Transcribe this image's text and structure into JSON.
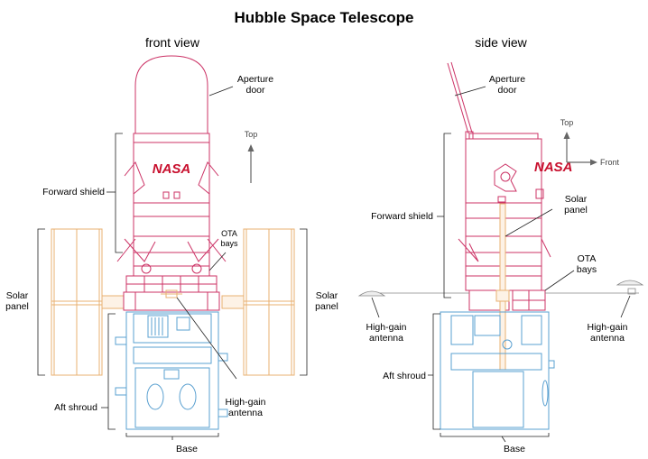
{
  "title": "Hubble Space Telescope",
  "front": {
    "heading": "front view",
    "labels": {
      "aperture_1": "Aperture",
      "aperture_2": "door",
      "forward_shield": "Forward shield",
      "solar_left_1": "Solar",
      "solar_left_2": "panel",
      "solar_right_1": "Solar",
      "solar_right_2": "panel",
      "ota_1": "OTA",
      "ota_2": "bays",
      "aft_shroud": "Aft shroud",
      "hga_1": "High-gain",
      "hga_2": "antenna",
      "base": "Base",
      "top": "Top",
      "logo": "NASA"
    }
  },
  "side": {
    "heading": "side view",
    "labels": {
      "aperture_1": "Aperture",
      "aperture_2": "door",
      "forward_shield": "Forward shield",
      "solar_1": "Solar",
      "solar_2": "panel",
      "ota_1": "OTA",
      "ota_2": "bays",
      "hga_left_1": "High-gain",
      "hga_left_2": "antenna",
      "hga_right_1": "High-gain",
      "hga_right_2": "antenna",
      "aft_shroud": "Aft shroud",
      "base": "Base",
      "top": "Top",
      "front": "Front",
      "logo": "NASA"
    }
  },
  "colors": {
    "telescope": "#cc3366",
    "aft": "#5aa0d0",
    "solar": "#e8b070",
    "mast": "#f0c896",
    "leader": "#222222",
    "logo": "#c8102e",
    "arrow": "#666666"
  }
}
